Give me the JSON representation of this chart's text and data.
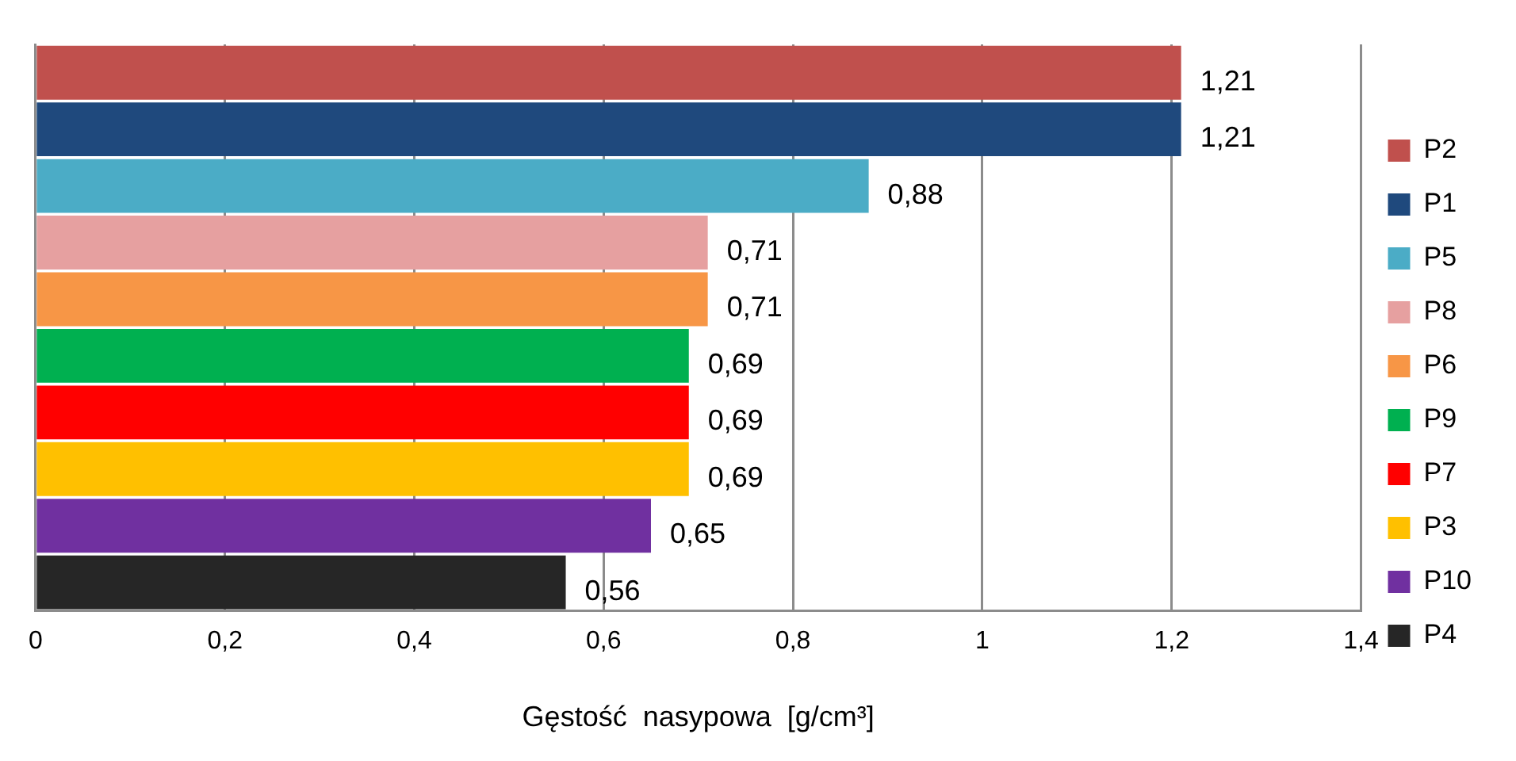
{
  "chart_data": {
    "type": "bar",
    "orientation": "horizontal",
    "xlabel": "Gęstość  nasypowa  [g/cm³]",
    "categories": [
      null,
      null,
      null,
      null,
      null,
      null,
      null,
      null,
      null,
      null
    ],
    "series": [
      {
        "name": "P2",
        "color": "#c0504d",
        "values": [
          1.21,
          null,
          null,
          null,
          null,
          null,
          null,
          null,
          null,
          null
        ],
        "value_labels": [
          "1,21",
          null,
          null,
          null,
          null,
          null,
          null,
          null,
          null,
          null
        ]
      },
      {
        "name": "P1",
        "color": "#1f497d",
        "values": [
          null,
          1.21,
          null,
          null,
          null,
          null,
          null,
          null,
          null,
          null
        ],
        "value_labels": [
          null,
          "1,21",
          null,
          null,
          null,
          null,
          null,
          null,
          null,
          null
        ]
      },
      {
        "name": "P5",
        "color": "#4bacc6",
        "values": [
          null,
          null,
          0.88,
          null,
          null,
          null,
          null,
          null,
          null,
          null
        ],
        "value_labels": [
          null,
          null,
          "0,88",
          null,
          null,
          null,
          null,
          null,
          null,
          null
        ]
      },
      {
        "name": "P8",
        "color": "#e6a0a0",
        "values": [
          null,
          null,
          null,
          0.71,
          null,
          null,
          null,
          null,
          null,
          null
        ],
        "value_labels": [
          null,
          null,
          null,
          "0,71",
          null,
          null,
          null,
          null,
          null,
          null
        ]
      },
      {
        "name": "P6",
        "color": "#f79646",
        "values": [
          null,
          null,
          null,
          null,
          0.71,
          null,
          null,
          null,
          null,
          null
        ],
        "value_labels": [
          null,
          null,
          null,
          null,
          "0,71",
          null,
          null,
          null,
          null,
          null
        ]
      },
      {
        "name": "P9",
        "color": "#00b050",
        "values": [
          null,
          null,
          null,
          null,
          null,
          0.69,
          null,
          null,
          null,
          null
        ],
        "value_labels": [
          null,
          null,
          null,
          null,
          null,
          "0,69",
          null,
          null,
          null,
          null
        ]
      },
      {
        "name": "P7",
        "color": "#ff0000",
        "values": [
          null,
          null,
          null,
          null,
          null,
          null,
          0.69,
          null,
          null,
          null
        ],
        "value_labels": [
          null,
          null,
          null,
          null,
          null,
          null,
          "0,69",
          null,
          null,
          null
        ]
      },
      {
        "name": "P3",
        "color": "#ffc000",
        "values": [
          null,
          null,
          null,
          null,
          null,
          null,
          null,
          0.69,
          null,
          null
        ],
        "value_labels": [
          null,
          null,
          null,
          null,
          null,
          null,
          null,
          "0,69",
          null,
          null
        ]
      },
      {
        "name": "P10",
        "color": "#7030a0",
        "values": [
          null,
          null,
          null,
          null,
          null,
          null,
          null,
          null,
          0.65,
          null
        ],
        "value_labels": [
          null,
          null,
          null,
          null,
          null,
          null,
          null,
          null,
          "0,65",
          null
        ]
      },
      {
        "name": "P4",
        "color": "#262626",
        "values": [
          null,
          null,
          null,
          null,
          null,
          null,
          null,
          null,
          null,
          0.56
        ],
        "value_labels": [
          null,
          null,
          null,
          null,
          null,
          null,
          null,
          null,
          null,
          "0,56"
        ]
      }
    ],
    "xlim": [
      0,
      1.4
    ],
    "xticks": [
      {
        "value": 0,
        "label": "0"
      },
      {
        "value": 0.2,
        "label": "0,2"
      },
      {
        "value": 0.4,
        "label": "0,4"
      },
      {
        "value": 0.6,
        "label": "0,6"
      },
      {
        "value": 0.8,
        "label": "0,8"
      },
      {
        "value": 1,
        "label": "1"
      },
      {
        "value": 1.2,
        "label": "1,2"
      },
      {
        "value": 1.4,
        "label": "1,4"
      }
    ],
    "grid": "x",
    "legend": "right"
  }
}
